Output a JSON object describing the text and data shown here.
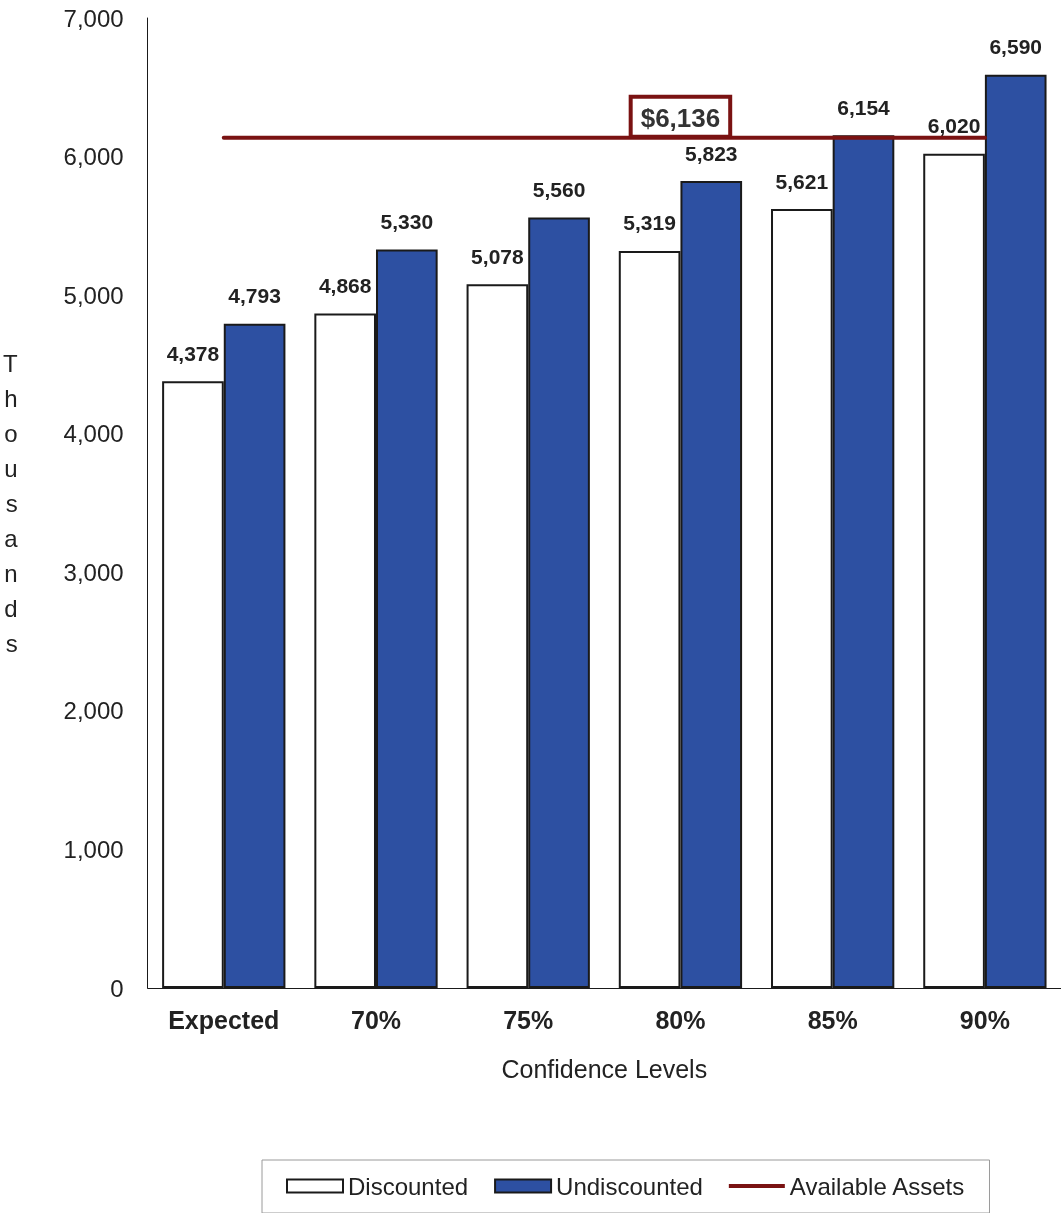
{
  "chart_data": {
    "type": "bar",
    "xlabel": "Confidence Levels",
    "ylabel": "Thousands",
    "categories": [
      "Expected",
      "70%",
      "75%",
      "80%",
      "85%",
      "90%"
    ],
    "series": [
      {
        "name": "Discounted",
        "color": "#ffffff",
        "values": [
          4378,
          4868,
          5078,
          5319,
          5621,
          6020
        ],
        "value_labels": [
          "4,378",
          "4,868",
          "5,078",
          "5,319",
          "5,621",
          "6,020"
        ]
      },
      {
        "name": "Undiscounted",
        "color": "#2d50a2",
        "values": [
          4793,
          5330,
          5560,
          5823,
          6154,
          6590
        ],
        "value_labels": [
          "4,793",
          "5,330",
          "5,560",
          "5,823",
          "6,154",
          "6,590"
        ]
      },
      {
        "name": "Available Assets",
        "type": "line",
        "color": "#7a1212",
        "values": [
          6136,
          6136,
          6136,
          6136,
          6136,
          6136
        ],
        "value_labels": [
          null,
          null,
          null,
          "$6,136",
          null,
          null
        ]
      }
    ],
    "ylim": [
      0,
      7000
    ],
    "yticks": [
      {
        "value": 0,
        "label": "0"
      },
      {
        "value": 1000,
        "label": "1,000"
      },
      {
        "value": 2000,
        "label": "2,000"
      },
      {
        "value": 3000,
        "label": "3,000"
      },
      {
        "value": 4000,
        "label": "4,000"
      },
      {
        "value": 5000,
        "label": "5,000"
      },
      {
        "value": 6000,
        "label": "6,000"
      },
      {
        "value": 7000,
        "label": "7,000"
      }
    ],
    "grid": false,
    "legend": "bottom"
  }
}
